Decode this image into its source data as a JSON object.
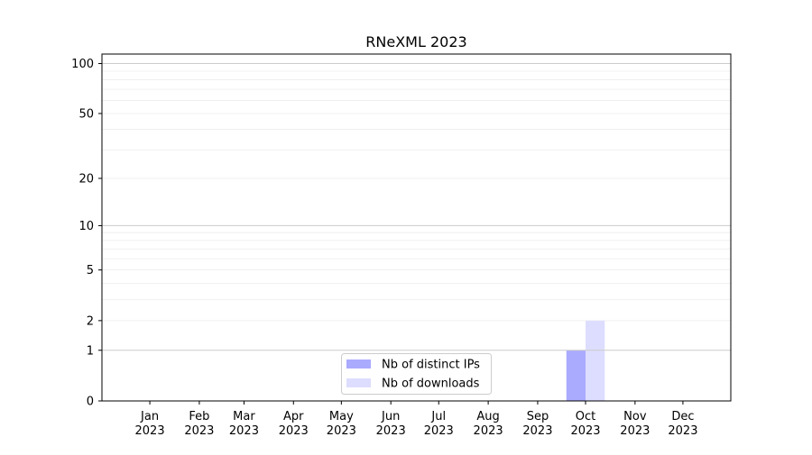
{
  "chart_data": {
    "type": "bar",
    "title": "RNeXML 2023",
    "xlabel": "",
    "ylabel": "",
    "yscale": "log(1+y)",
    "ylim": [
      0,
      114
    ],
    "yticks": [
      0,
      1,
      2,
      5,
      10,
      20,
      50,
      100
    ],
    "xlim": [
      "2022-12-02",
      "2023-12-31"
    ],
    "xticks": [
      {
        "date": "2023-01-01",
        "label": [
          "Jan",
          "2023"
        ]
      },
      {
        "date": "2023-02-01",
        "label": [
          "Feb",
          "2023"
        ]
      },
      {
        "date": "2023-03-01",
        "label": [
          "Mar",
          "2023"
        ]
      },
      {
        "date": "2023-04-01",
        "label": [
          "Apr",
          "2023"
        ]
      },
      {
        "date": "2023-05-01",
        "label": [
          "May",
          "2023"
        ]
      },
      {
        "date": "2023-06-01",
        "label": [
          "Jun",
          "2023"
        ]
      },
      {
        "date": "2023-07-01",
        "label": [
          "Jul",
          "2023"
        ]
      },
      {
        "date": "2023-08-01",
        "label": [
          "Aug",
          "2023"
        ]
      },
      {
        "date": "2023-09-01",
        "label": [
          "Sep",
          "2023"
        ]
      },
      {
        "date": "2023-10-01",
        "label": [
          "Oct",
          "2023"
        ]
      },
      {
        "date": "2023-11-01",
        "label": [
          "Nov",
          "2023"
        ]
      },
      {
        "date": "2023-12-01",
        "label": [
          "Dec",
          "2023"
        ]
      }
    ],
    "grid": true,
    "legend_placement": "lower-center",
    "series": [
      {
        "name": "Nb of distinct IPs",
        "color": "#aaaaff",
        "align": "left",
        "points": [
          {
            "date": "2023-10-01",
            "value": 1
          }
        ]
      },
      {
        "name": "Nb of downloads",
        "color": "#ddddff",
        "align": "right",
        "points": [
          {
            "date": "2023-10-01",
            "value": 2
          }
        ]
      }
    ]
  }
}
